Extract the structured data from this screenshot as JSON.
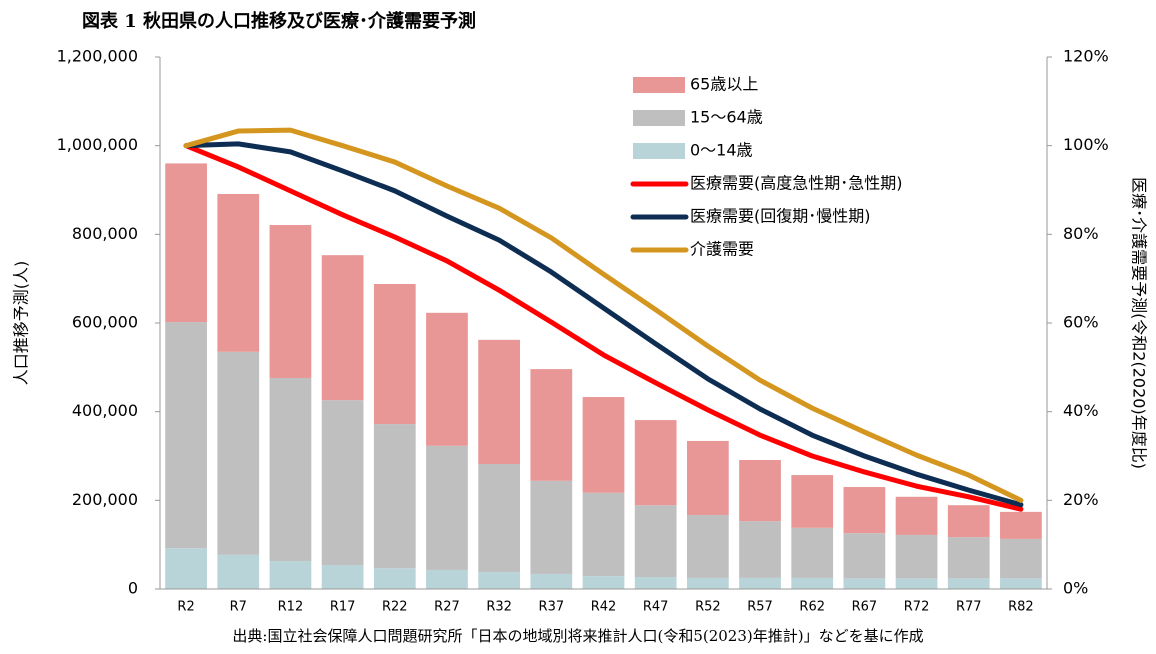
{
  "chart_data": {
    "type": "bar",
    "title": "図表 1 秋田県の人口推移及び医療･介護需要予測",
    "y_label": "人口推移予測(人)",
    "y2_label": "医療･介護需要予測(令和2(2020)年度比)",
    "source": "出典:国立社会保障人口問題研究所「日本の地域別将来推計人口(令和5(2023)年推計)」などを基に作成",
    "categories": [
      "R2",
      "R7",
      "R12",
      "R17",
      "R22",
      "R27",
      "R32",
      "R37",
      "R42",
      "R47",
      "R52",
      "R57",
      "R62",
      "R67",
      "R72",
      "R77",
      "R82"
    ],
    "series": [
      {
        "name": "65歳以上",
        "type": "bar",
        "color": "#e89796",
        "values": [
          358000,
          356000,
          345000,
          327000,
          316000,
          300000,
          280000,
          252000,
          216000,
          192000,
          167000,
          138000,
          119000,
          104000,
          86000,
          72000,
          61000
        ]
      },
      {
        "name": "15〜64歳",
        "type": "bar",
        "color": "#bfbfbf",
        "values": [
          510000,
          458000,
          413000,
          372000,
          325000,
          280000,
          244000,
          210000,
          188000,
          162000,
          142000,
          128000,
          113000,
          102000,
          98000,
          93000,
          89000
        ]
      },
      {
        "name": "0〜14歳",
        "type": "bar",
        "color": "#b8d4d8",
        "values": [
          92000,
          77000,
          63000,
          54000,
          47000,
          43000,
          38000,
          34000,
          29000,
          27000,
          25000,
          25000,
          25000,
          24000,
          24000,
          24000,
          24000
        ]
      },
      {
        "name": "医療需要(高度急性期･急性期)",
        "type": "line",
        "axis": "y2",
        "color": "#ff0000",
        "values": [
          100,
          95.2,
          89.8,
          84.4,
          79.4,
          74,
          67.4,
          60.2,
          52.8,
          46.5,
          40.4,
          34.7,
          30,
          26.4,
          23.2,
          20.8,
          18
        ]
      },
      {
        "name": "医療需要(回復期･慢性期)",
        "type": "line",
        "axis": "y2",
        "color": "#0d2d52",
        "values": [
          100,
          100.4,
          98.6,
          94.3,
          89.8,
          84.1,
          78.7,
          71.5,
          63.4,
          55.3,
          47.4,
          40.6,
          34.7,
          30,
          25.9,
          22.3,
          19
        ]
      },
      {
        "name": "介護需要",
        "type": "line",
        "axis": "y2",
        "color": "#d4961f",
        "values": [
          100,
          103.3,
          103.5,
          100,
          96.3,
          90.9,
          85.9,
          79.2,
          71,
          63,
          54.8,
          47.1,
          40.8,
          35.4,
          30.2,
          25.7,
          20
        ]
      }
    ],
    "stacked": true,
    "ylim": [
      0,
      1200000
    ],
    "yticks": [
      0,
      {
        "value": 200000,
        "label": "200,000"
      },
      {
        "value": 400000,
        "label": "400,000"
      },
      {
        "value": 600000,
        "label": "600,000"
      },
      {
        "value": 800000,
        "label": "800,000"
      },
      {
        "value": 1000000,
        "label": "1,000,000"
      },
      {
        "value": 1200000,
        "label": "1,200,000"
      }
    ],
    "y2lim": [
      0,
      120
    ],
    "y2ticks": [
      {
        "value": 0,
        "label": "0%"
      },
      {
        "value": 20,
        "label": "20%"
      },
      {
        "value": 40,
        "label": "40%"
      },
      {
        "value": 60,
        "label": "60%"
      },
      {
        "value": 80,
        "label": "80%"
      },
      {
        "value": 100,
        "label": "100%"
      },
      {
        "value": 120,
        "label": "120%"
      }
    ],
    "legend": "top-right"
  }
}
